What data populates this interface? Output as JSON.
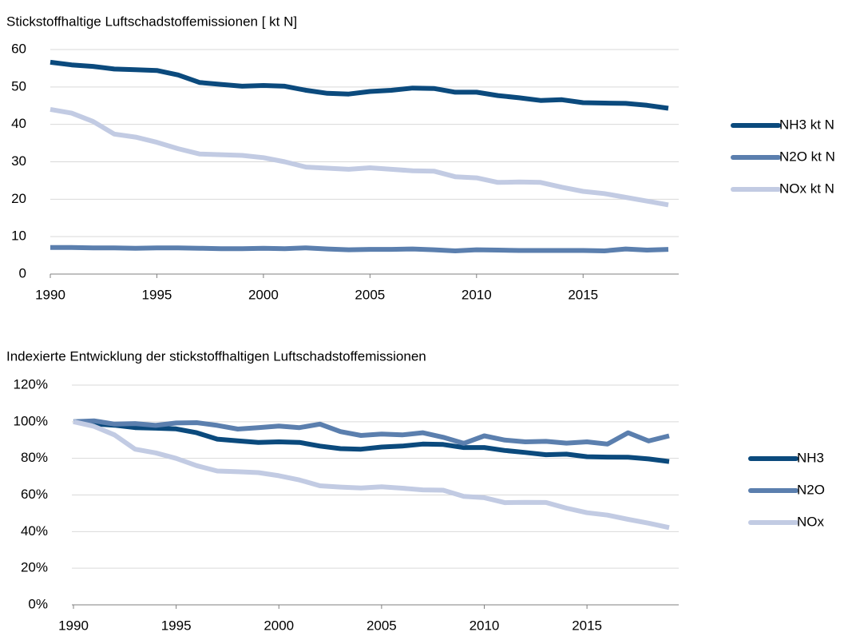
{
  "chart_data": [
    {
      "type": "line",
      "title": "Stickstoffhaltige Luftschadstoffemissionen [ kt N]",
      "x": [
        1990,
        1991,
        1992,
        1993,
        1994,
        1995,
        1996,
        1997,
        1998,
        1999,
        2000,
        2001,
        2002,
        2003,
        2004,
        2005,
        2006,
        2007,
        2008,
        2009,
        2010,
        2011,
        2012,
        2013,
        2014,
        2015,
        2016,
        2017,
        2018,
        2019
      ],
      "xlim": [
        1990,
        2019
      ],
      "xticks": [
        1990,
        1995,
        2000,
        2005,
        2010,
        2015
      ],
      "ylim": [
        0,
        60
      ],
      "yticks": [
        0,
        10,
        20,
        30,
        40,
        50,
        60
      ],
      "grid": true,
      "legend": "right",
      "series": [
        {
          "name": "NH3 kt N",
          "color": "#0b4a7d",
          "values": [
            56.6,
            55.9,
            55.5,
            54.8,
            54.6,
            54.4,
            53.2,
            51.2,
            50.7,
            50.2,
            50.4,
            50.2,
            49.1,
            48.3,
            48.1,
            48.8,
            49.1,
            49.7,
            49.6,
            48.6,
            48.6,
            47.7,
            47.1,
            46.4,
            46.6,
            45.8,
            45.7,
            45.6,
            45.1,
            44.3
          ]
        },
        {
          "name": "N2O kt N",
          "color": "#5b7fae",
          "values": [
            7.1,
            7.1,
            7.0,
            7.0,
            6.9,
            7.0,
            7.0,
            6.9,
            6.8,
            6.8,
            6.9,
            6.8,
            7.0,
            6.7,
            6.5,
            6.6,
            6.6,
            6.7,
            6.5,
            6.2,
            6.5,
            6.4,
            6.3,
            6.3,
            6.3,
            6.3,
            6.2,
            6.7,
            6.4,
            6.6
          ]
        },
        {
          "name": "NOx kt N",
          "color": "#c2cbe3",
          "values": [
            44.0,
            43.0,
            40.8,
            37.4,
            36.6,
            35.2,
            33.5,
            32.1,
            31.9,
            31.7,
            31.1,
            30.0,
            28.6,
            28.3,
            28.0,
            28.4,
            28.0,
            27.6,
            27.5,
            26.0,
            25.7,
            24.5,
            24.6,
            24.5,
            23.2,
            22.1,
            21.5,
            20.5,
            19.5,
            18.5
          ]
        }
      ]
    },
    {
      "type": "line",
      "title": "Indexierte Entwicklung der stickstoffhaltigen Luftschadstoffemissionen",
      "x": [
        1990,
        1991,
        1992,
        1993,
        1994,
        1995,
        1996,
        1997,
        1998,
        1999,
        2000,
        2001,
        2002,
        2003,
        2004,
        2005,
        2006,
        2007,
        2008,
        2009,
        2010,
        2011,
        2012,
        2013,
        2014,
        2015,
        2016,
        2017,
        2018,
        2019
      ],
      "xlim": [
        1990,
        2019
      ],
      "xticks": [
        1990,
        1995,
        2000,
        2005,
        2010,
        2015
      ],
      "ylim": [
        0,
        120
      ],
      "yticks": [
        {
          "value": 0,
          "label": "0%"
        },
        {
          "value": 20,
          "label": "20%"
        },
        {
          "value": 40,
          "label": "40%"
        },
        {
          "value": 60,
          "label": "60%"
        },
        {
          "value": 80,
          "label": "80%"
        },
        {
          "value": 100,
          "label": "100%"
        },
        {
          "value": 120,
          "label": "120%"
        }
      ],
      "grid": true,
      "legend": "right",
      "series": [
        {
          "name": "NH3",
          "color": "#0b4a7d",
          "values": [
            100,
            98.8,
            98.1,
            96.8,
            96.5,
            96.1,
            94.0,
            90.5,
            89.6,
            88.7,
            89.0,
            88.7,
            86.7,
            85.3,
            85.0,
            86.2,
            86.7,
            87.8,
            87.6,
            85.9,
            85.9,
            84.3,
            83.2,
            82.0,
            82.3,
            80.9,
            80.7,
            80.6,
            79.7,
            78.3
          ]
        },
        {
          "name": "N2O",
          "color": "#5b7fae",
          "values": [
            100,
            100.5,
            98.7,
            99,
            98,
            99.3,
            99.5,
            98,
            96,
            96.8,
            97.6,
            96.8,
            98.7,
            94.6,
            92.5,
            93.3,
            92.8,
            94.0,
            91.5,
            88.2,
            92.3,
            90,
            89,
            89.3,
            88.3,
            89,
            87.8,
            94,
            89.5,
            92.3
          ]
        },
        {
          "name": "NOx",
          "color": "#c2cbe3",
          "values": [
            100,
            97.5,
            92.8,
            85,
            83,
            80,
            76,
            73.1,
            72.7,
            72.2,
            70.5,
            68.2,
            65.0,
            64.3,
            63.8,
            64.5,
            63.7,
            62.8,
            62.6,
            59.2,
            58.5,
            55.8,
            56,
            55.9,
            52.8,
            50.3,
            49,
            46.7,
            44.6,
            42.2
          ]
        }
      ]
    }
  ]
}
